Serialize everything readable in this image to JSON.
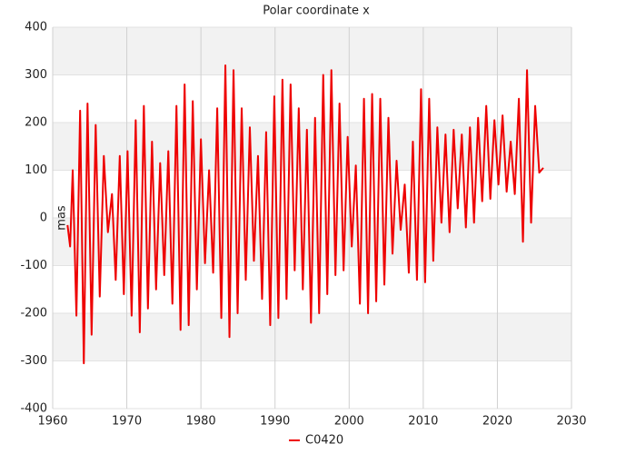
{
  "chart_data": {
    "type": "line",
    "title": "Polar coordinate x",
    "y_label": "mas",
    "xlim": [
      1960,
      2030
    ],
    "xticks": [
      1960,
      1970,
      1980,
      1990,
      2000,
      2010,
      2020,
      2030
    ],
    "ylim": [
      -400,
      400
    ],
    "yticks": [
      -400,
      -300,
      -200,
      -100,
      0,
      100,
      200,
      300,
      400
    ],
    "grid": true,
    "legend": "bottom",
    "x": [
      1962.0,
      1962.35,
      1962.7,
      1963.2,
      1963.7,
      1964.2,
      1964.7,
      1965.25,
      1965.8,
      1966.35,
      1966.9,
      1967.45,
      1968.0,
      1968.5,
      1969.05,
      1969.6,
      1970.1,
      1970.65,
      1971.2,
      1971.75,
      1972.3,
      1972.85,
      1973.4,
      1973.95,
      1974.5,
      1975.05,
      1975.6,
      1976.15,
      1976.7,
      1977.25,
      1977.8,
      1978.35,
      1978.9,
      1979.45,
      1980.0,
      1980.55,
      1981.1,
      1981.65,
      1982.2,
      1982.75,
      1983.3,
      1983.85,
      1984.4,
      1984.95,
      1985.5,
      1986.05,
      1986.6,
      1987.15,
      1987.7,
      1988.25,
      1988.8,
      1989.35,
      1989.9,
      1990.45,
      1991.0,
      1991.55,
      1992.1,
      1992.65,
      1993.2,
      1993.75,
      1994.3,
      1994.85,
      1995.4,
      1995.95,
      1996.5,
      1997.05,
      1997.6,
      1998.15,
      1998.7,
      1999.25,
      1999.8,
      2000.35,
      2000.9,
      2001.45,
      2002.0,
      2002.55,
      2003.1,
      2003.65,
      2004.2,
      2004.75,
      2005.3,
      2005.85,
      2006.4,
      2006.95,
      2007.5,
      2008.05,
      2008.6,
      2009.15,
      2009.7,
      2010.25,
      2010.8,
      2011.35,
      2011.9,
      2012.45,
      2013.0,
      2013.55,
      2014.1,
      2014.65,
      2015.2,
      2015.75,
      2016.3,
      2016.85,
      2017.4,
      2017.95,
      2018.5,
      2019.05,
      2019.6,
      2020.15,
      2020.7,
      2021.25,
      2021.8,
      2022.35,
      2022.9,
      2023.45,
      2024.0,
      2024.55,
      2025.1,
      2025.65,
      2026.2
    ],
    "series": [
      {
        "name": "C0420",
        "color": "#ee0000",
        "values": [
          -15,
          -60,
          100,
          -205,
          225,
          -305,
          240,
          -245,
          195,
          -165,
          130,
          -30,
          50,
          -130,
          130,
          -160,
          140,
          -205,
          205,
          -240,
          235,
          -190,
          160,
          -150,
          115,
          -120,
          140,
          -180,
          235,
          -235,
          280,
          -225,
          245,
          -150,
          165,
          -95,
          100,
          -115,
          230,
          -210,
          320,
          -250,
          310,
          -200,
          230,
          -130,
          190,
          -90,
          130,
          -170,
          180,
          -225,
          255,
          -210,
          290,
          -170,
          280,
          -110,
          230,
          -150,
          185,
          -220,
          210,
          -200,
          300,
          -160,
          310,
          -120,
          240,
          -110,
          170,
          -60,
          110,
          -180,
          250,
          -200,
          260,
          -175,
          250,
          -140,
          210,
          -75,
          120,
          -25,
          70,
          -115,
          160,
          -130,
          270,
          -135,
          250,
          -90,
          190,
          -10,
          175,
          -30,
          185,
          20,
          175,
          -20,
          190,
          -10,
          210,
          35,
          235,
          40,
          205,
          70,
          215,
          55,
          160,
          50,
          250,
          -50,
          310,
          -10,
          235,
          95,
          105
        ]
      }
    ]
  }
}
